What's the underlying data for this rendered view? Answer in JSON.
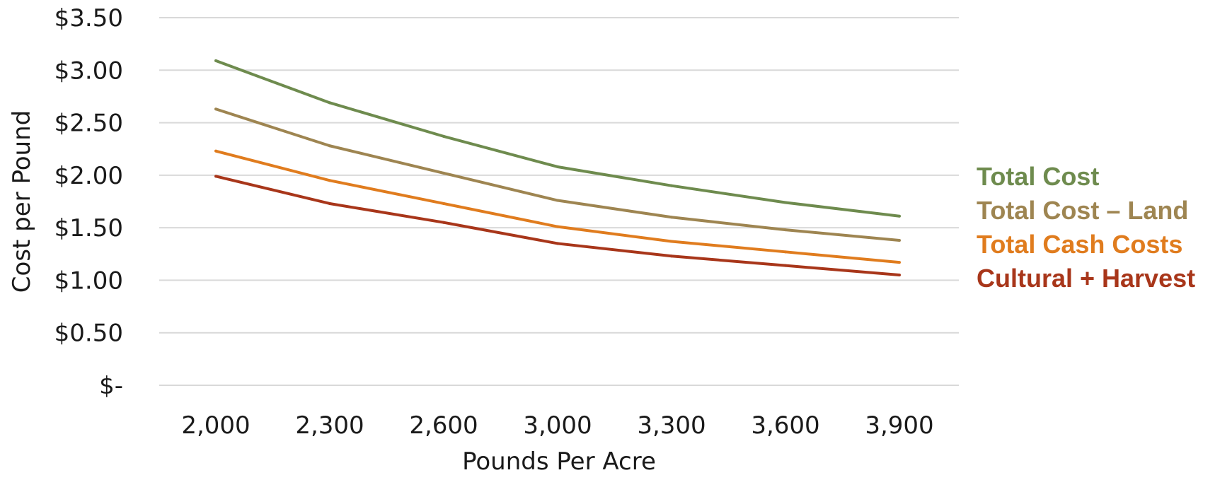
{
  "chart_data": {
    "type": "line",
    "xlabel": "Pounds Per Acre",
    "ylabel": "Cost per Pound",
    "categories": [
      "2,000",
      "2,300",
      "2,600",
      "3,000",
      "3,300",
      "3,600",
      "3,900"
    ],
    "ylim": [
      0,
      3.5
    ],
    "yticks": [
      {
        "value": 0,
        "label": "$-"
      },
      {
        "value": 0.5,
        "label": "$0.50"
      },
      {
        "value": 1.0,
        "label": "$1.00"
      },
      {
        "value": 1.5,
        "label": "$1.50"
      },
      {
        "value": 2.0,
        "label": "$2.00"
      },
      {
        "value": 2.5,
        "label": "$2.50"
      },
      {
        "value": 3.0,
        "label": "$3.00"
      },
      {
        "value": 3.5,
        "label": "$3.50"
      }
    ],
    "grid": true,
    "legend_position": "right",
    "series": [
      {
        "name": "Total Cost",
        "color": "#6e8b4e",
        "values": [
          3.09,
          2.69,
          2.37,
          2.08,
          1.9,
          1.74,
          1.61
        ]
      },
      {
        "name": "Total Cost – Land",
        "color": "#9e8551",
        "values": [
          2.63,
          2.28,
          2.02,
          1.76,
          1.6,
          1.48,
          1.38
        ]
      },
      {
        "name": "Total Cash Costs",
        "color": "#e07c1e",
        "values": [
          2.23,
          1.95,
          1.73,
          1.51,
          1.37,
          1.27,
          1.17
        ]
      },
      {
        "name": "Cultural + Harvest",
        "color": "#a8361a",
        "values": [
          1.99,
          1.73,
          1.55,
          1.35,
          1.23,
          1.14,
          1.05
        ]
      }
    ]
  }
}
